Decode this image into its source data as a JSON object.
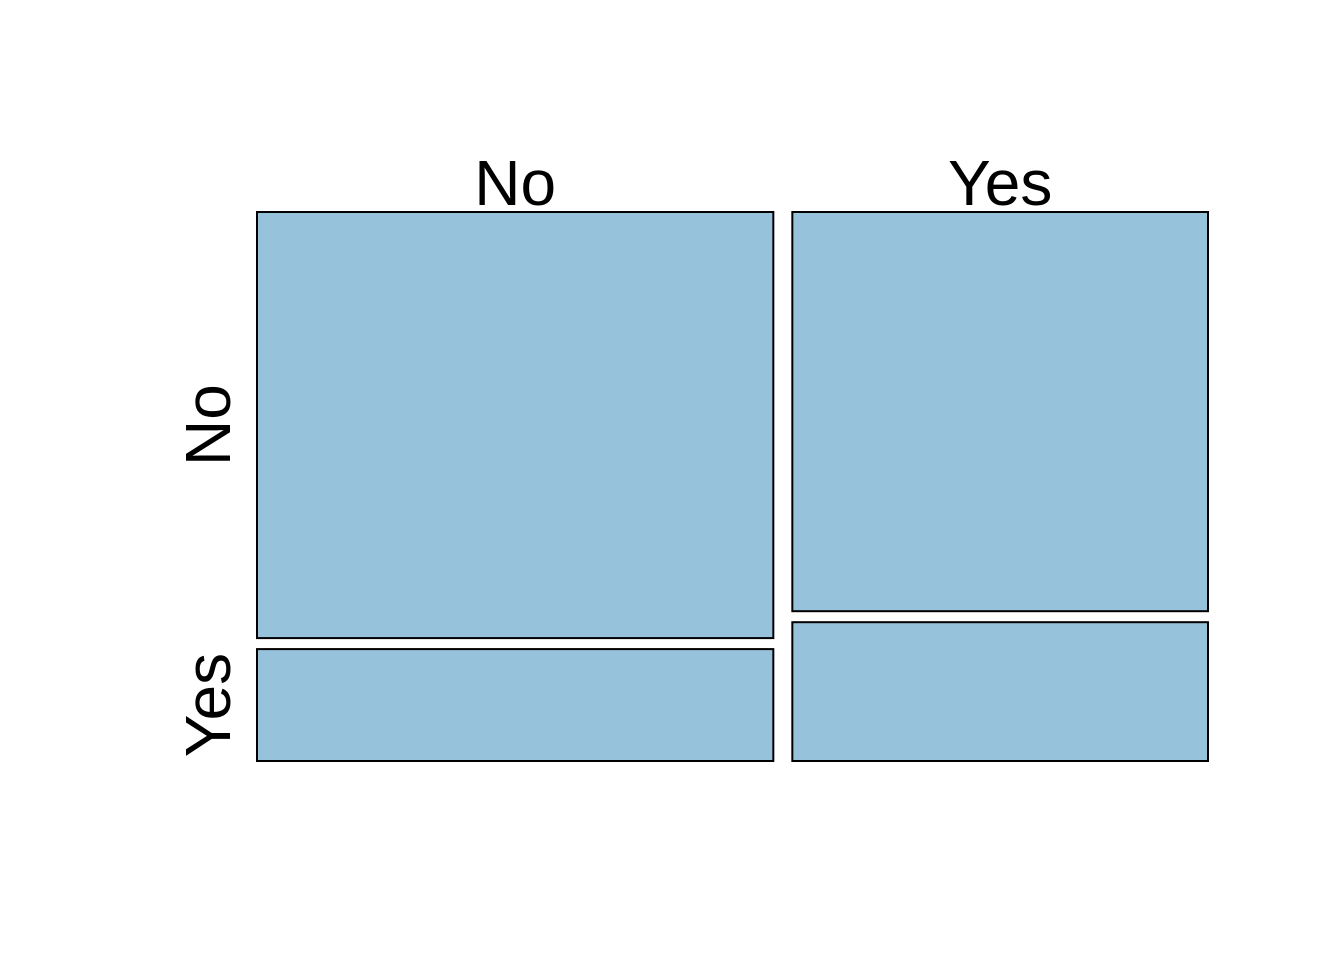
{
  "chart_data": {
    "type": "mosaic",
    "title": "",
    "xlabel": "",
    "ylabel": "",
    "column_categories": [
      "No",
      "Yes"
    ],
    "row_categories": [
      "No",
      "Yes"
    ],
    "column_proportions": [
      0.554,
      0.446
    ],
    "row_proportions_within_column": [
      [
        0.792,
        0.208
      ],
      [
        0.742,
        0.258
      ]
    ],
    "fill_color": "#96c2db",
    "border_color": "#000000",
    "grid": false,
    "legend": "none"
  }
}
